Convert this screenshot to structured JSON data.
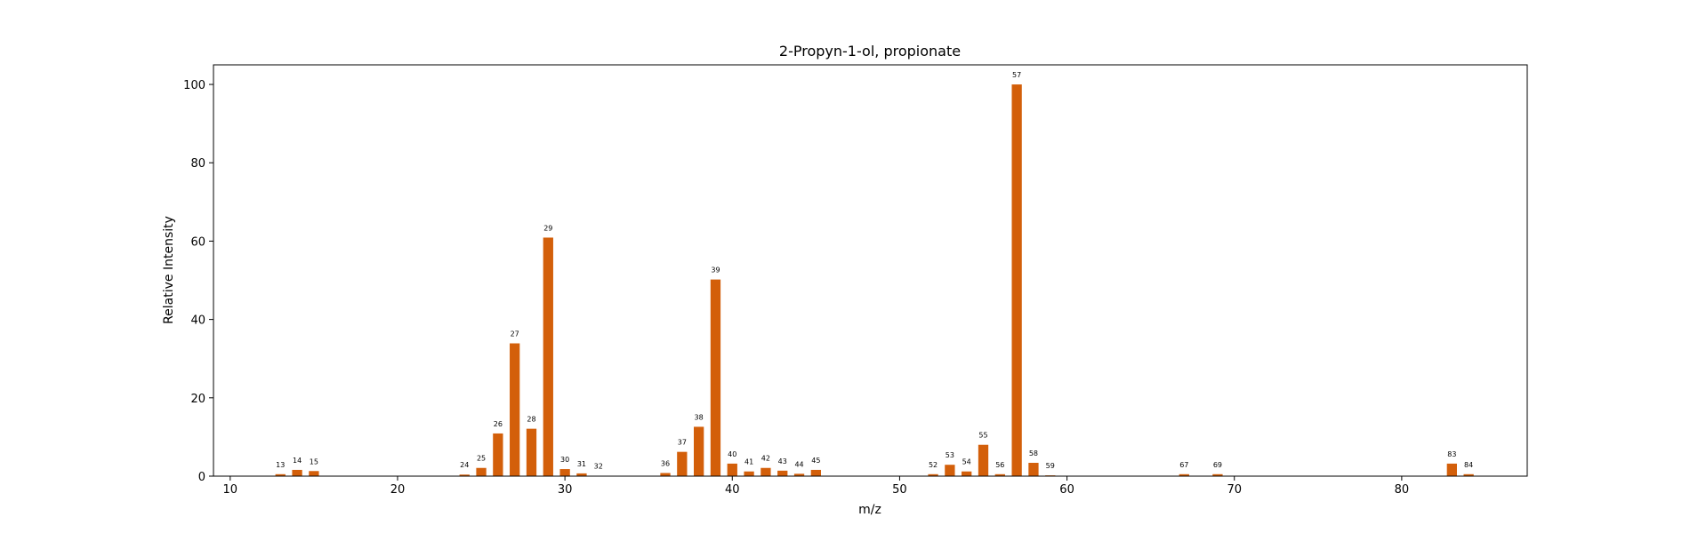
{
  "chart_data": {
    "type": "bar",
    "title": "2-Propyn-1-ol, propionate",
    "xlabel": "m/z",
    "ylabel": "Relative Intensity",
    "xlim": [
      9,
      87.5
    ],
    "ylim": [
      0,
      105
    ],
    "xticks": [
      10,
      20,
      30,
      40,
      50,
      60,
      70,
      80
    ],
    "yticks": [
      0,
      20,
      40,
      60,
      80,
      100
    ],
    "grid": false,
    "bar_color": "#d35f0a",
    "peaks": [
      {
        "mz": 13,
        "intensity": 0.5
      },
      {
        "mz": 14,
        "intensity": 1.6
      },
      {
        "mz": 15,
        "intensity": 1.3
      },
      {
        "mz": 24,
        "intensity": 0.4
      },
      {
        "mz": 25,
        "intensity": 2.1
      },
      {
        "mz": 26,
        "intensity": 10.9
      },
      {
        "mz": 27,
        "intensity": 33.9
      },
      {
        "mz": 28,
        "intensity": 12.1
      },
      {
        "mz": 29,
        "intensity": 60.9
      },
      {
        "mz": 30,
        "intensity": 1.8
      },
      {
        "mz": 31,
        "intensity": 0.7
      },
      {
        "mz": 32,
        "intensity": 0.1
      },
      {
        "mz": 36,
        "intensity": 0.8
      },
      {
        "mz": 37,
        "intensity": 6.2
      },
      {
        "mz": 38,
        "intensity": 12.6
      },
      {
        "mz": 39,
        "intensity": 50.2
      },
      {
        "mz": 40,
        "intensity": 3.2
      },
      {
        "mz": 41,
        "intensity": 1.2
      },
      {
        "mz": 42,
        "intensity": 2.1
      },
      {
        "mz": 43,
        "intensity": 1.4
      },
      {
        "mz": 44,
        "intensity": 0.6
      },
      {
        "mz": 45,
        "intensity": 1.6
      },
      {
        "mz": 52,
        "intensity": 0.5
      },
      {
        "mz": 53,
        "intensity": 2.9
      },
      {
        "mz": 54,
        "intensity": 1.2
      },
      {
        "mz": 55,
        "intensity": 8.0
      },
      {
        "mz": 56,
        "intensity": 0.5
      },
      {
        "mz": 57,
        "intensity": 100.0
      },
      {
        "mz": 58,
        "intensity": 3.4
      },
      {
        "mz": 59,
        "intensity": 0.2
      },
      {
        "mz": 67,
        "intensity": 0.5
      },
      {
        "mz": 69,
        "intensity": 0.5
      },
      {
        "mz": 83,
        "intensity": 3.2
      },
      {
        "mz": 84,
        "intensity": 0.5
      }
    ]
  }
}
